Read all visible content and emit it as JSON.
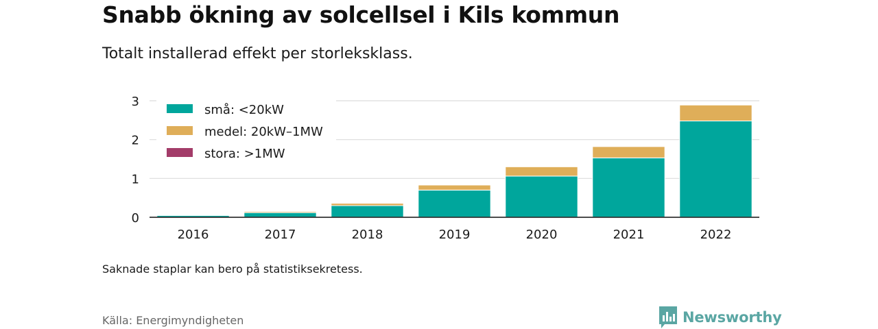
{
  "header": {
    "title": "Snabb ökning av solcellsel i Kils kommun",
    "subtitle": "Totalt installerad effekt per storleksklass."
  },
  "footer": {
    "note": "Saknade staplar kan bero på statistiksekretess.",
    "source": "Källa: Energimyndigheten",
    "brand": "Newsworthy"
  },
  "chart_data": {
    "type": "bar",
    "stacked": true,
    "categories": [
      "2016",
      "2017",
      "2018",
      "2019",
      "2020",
      "2021",
      "2022"
    ],
    "series": [
      {
        "name": "små: <20kW",
        "color": "#00a69c",
        "values": [
          0.05,
          0.12,
          0.3,
          0.7,
          1.06,
          1.53,
          2.48
        ]
      },
      {
        "name": "medel: 20kW–1MW",
        "color": "#dfae59",
        "values": [
          0.01,
          0.03,
          0.06,
          0.13,
          0.24,
          0.29,
          0.41
        ]
      },
      {
        "name": "stora: >1MW",
        "color": "#a33c69",
        "values": [
          0,
          0,
          0,
          0,
          0,
          0,
          0
        ]
      }
    ],
    "ylim": [
      0,
      3
    ],
    "yticks": [
      0,
      1,
      2,
      3
    ],
    "grid": true,
    "legend": "top-left"
  }
}
